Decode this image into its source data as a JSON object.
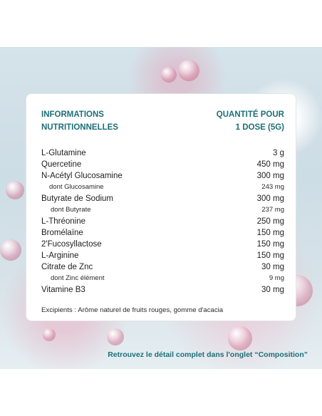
{
  "header": {
    "left_line1": "INFORMATIONS",
    "left_line2": "NUTRITIONNELLES",
    "right_line1": "QUANTITÉ POUR",
    "right_line2": "1 DOSE (5G)"
  },
  "rows": [
    {
      "name": "L-Glutamine",
      "value": "3 g"
    },
    {
      "name": "Quercetine",
      "value": "450 mg"
    },
    {
      "name": "N-Acétyl Glucosamine",
      "value": "300 mg"
    },
    {
      "name": "dont Glucosamine",
      "value": "243 mg"
    },
    {
      "name": "Butyrate de Sodium",
      "value": "300 mg"
    },
    {
      "name": "dont Butyrate",
      "value": "237 mg"
    },
    {
      "name": "L-Thréonine",
      "value": "250 mg"
    },
    {
      "name": "Bromélaïne",
      "value": "150 mg"
    },
    {
      "name": "2'Fucosyllactose",
      "value": "150 mg"
    },
    {
      "name": "L-Arginine",
      "value": "150 mg"
    },
    {
      "name": "Citrate de Znc",
      "value": "30 mg"
    },
    {
      "name": "dont Zinc élément",
      "value": "9 mg"
    },
    {
      "name": "Vitamine B3",
      "value": "30 mg"
    }
  ],
  "excipients": "Excipients : Arôme naturel de fruits rouges, gomme d'acacia",
  "footer": "Retrouvez le détail complet dans l'onglet “Composition”"
}
